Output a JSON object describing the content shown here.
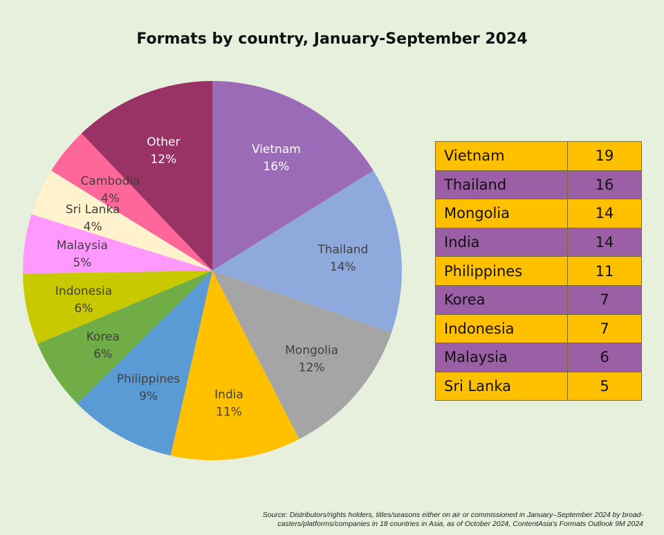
{
  "title": "Formats by country, January-September 2024",
  "source_line1": "Source: Distributors/rights holders, titles/seasons either on air or commissioned in January–September 2024 by broad-",
  "source_line2": "casters/platforms/companies in 18 countries in Asia, as of October 2024, ContentAsia's Formats Outlook 9M 2024",
  "chart_data": [
    {
      "type": "pie",
      "title": "Formats by country, January-September 2024",
      "slices": [
        {
          "label": "Vietnam",
          "pct_label": "16%",
          "value": 16,
          "color": "#9b6bb8",
          "text_color": "#ffffff"
        },
        {
          "label": "Thailand",
          "pct_label": "14%",
          "value": 14,
          "color": "#8eaadd",
          "text_color": "#404040"
        },
        {
          "label": "Mongolia",
          "pct_label": "12%",
          "value": 12,
          "color": "#a5a5a5",
          "text_color": "#404040"
        },
        {
          "label": "India",
          "pct_label": "11%",
          "value": 11,
          "color": "#ffc000",
          "text_color": "#404040"
        },
        {
          "label": "Philippines",
          "pct_label": "9%",
          "value": 9,
          "color": "#5b9bd5",
          "text_color": "#404040"
        },
        {
          "label": "Korea",
          "pct_label": "6%",
          "value": 6,
          "color": "#70ad47",
          "text_color": "#404040"
        },
        {
          "label": "Indonesia",
          "pct_label": "6%",
          "value": 6,
          "color": "#c9c900",
          "text_color": "#404040"
        },
        {
          "label": "Malaysia",
          "pct_label": "5%",
          "value": 5,
          "color": "#ff99ff",
          "text_color": "#404040"
        },
        {
          "label": "Sri Lanka",
          "pct_label": "4%",
          "value": 4,
          "color": "#fff2cc",
          "text_color": "#404040"
        },
        {
          "label": "Cambodia",
          "pct_label": "4%",
          "value": 4,
          "color": "#ff6699",
          "text_color": "#404040"
        },
        {
          "label": "Other",
          "pct_label": "12%",
          "value": 12,
          "color": "#993366",
          "text_color": "#ffffff"
        }
      ]
    },
    {
      "type": "table",
      "rows": [
        {
          "country": "Vietnam",
          "count": "19",
          "color": "#ffc000"
        },
        {
          "country": "Thailand",
          "count": "16",
          "color": "#9b5fa6"
        },
        {
          "country": "Mongolia",
          "count": "14",
          "color": "#ffc000"
        },
        {
          "country": "India",
          "count": "14",
          "color": "#9b5fa6"
        },
        {
          "country": "Philippines",
          "count": "11",
          "color": "#ffc000"
        },
        {
          "country": "Korea",
          "count": "7",
          "color": "#9b5fa6"
        },
        {
          "country": "Indonesia",
          "count": "7",
          "color": "#ffc000"
        },
        {
          "country": "Malaysia",
          "count": "6",
          "color": "#9b5fa6"
        },
        {
          "country": "Sri Lanka",
          "count": "5",
          "color": "#ffc000"
        }
      ]
    }
  ]
}
